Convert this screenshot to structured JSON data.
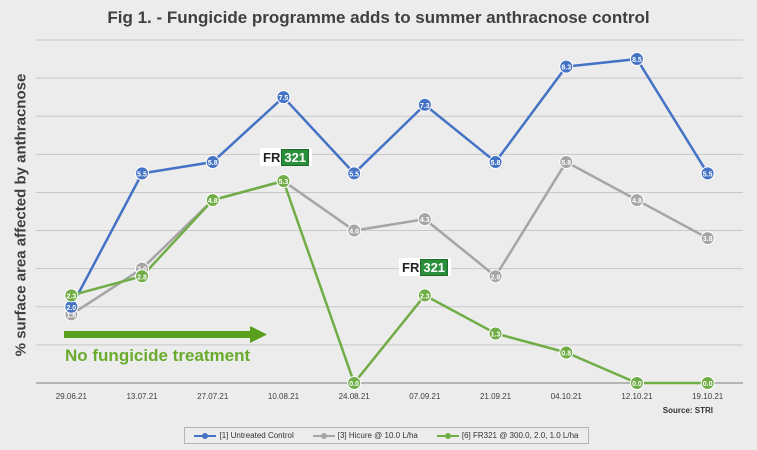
{
  "title": "Fig 1. - Fungicide programme adds to summer anthracnose control",
  "source": "Source: STRI",
  "annotation": "No fungicide treatment",
  "logo": {
    "fr": "FR",
    "num": "321"
  },
  "chart_data": {
    "type": "line",
    "title": "Fig 1. - Fungicide programme adds to summer anthracnose control",
    "xlabel": "",
    "ylabel": "% surface area affected by anthracnose",
    "categories": [
      "29.06.21",
      "13.07.21",
      "27.07.21",
      "10.08.21",
      "24.08.21",
      "07.09.21",
      "21.09.21",
      "04.10.21",
      "12.10.21",
      "19.10.21"
    ],
    "ylim": [
      0,
      9
    ],
    "grid": true,
    "legend": "bottom",
    "series": [
      {
        "name": "[1] Untreated Control",
        "color": "#4472c4",
        "values": [
          2.0,
          5.5,
          5.8,
          7.5,
          5.5,
          7.3,
          5.8,
          8.3,
          8.5,
          5.5
        ],
        "labels": [
          "2.0",
          "5.5",
          "5.8",
          "7.5",
          "5.5",
          "7.3",
          "5.8",
          "8.3",
          "8.5",
          "5.5"
        ]
      },
      {
        "name": "[3] Hicure @ 10.0 L/ha",
        "color": "#a5a5a5",
        "values": [
          1.8,
          3.0,
          4.8,
          5.3,
          4.0,
          4.3,
          2.8,
          5.8,
          4.8,
          3.8
        ],
        "labels": [
          "1.8",
          "3.0",
          "",
          "",
          "4.0",
          "4.3",
          "2.8",
          "5.8",
          "4.8",
          "3.8"
        ]
      },
      {
        "name": "[6] FR321 @ 300.0, 2.0, 1.0 L/ha",
        "color": "#70ad47",
        "values": [
          2.3,
          2.8,
          4.8,
          5.3,
          0.0,
          2.3,
          1.3,
          0.8,
          0.0,
          0.0
        ],
        "labels": [
          "2.3",
          "2.8",
          "4.8",
          "5.3",
          "0.0",
          "2.3",
          "1.3",
          "0.8",
          "0.0",
          "0.0"
        ]
      }
    ]
  }
}
